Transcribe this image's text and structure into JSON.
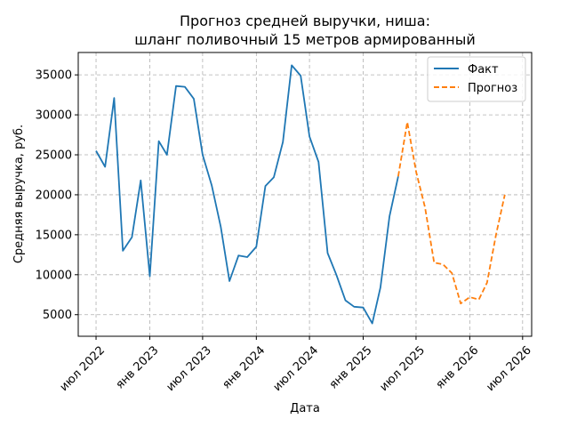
{
  "chart_data": {
    "type": "line",
    "title": [
      "Прогноз средней выручки, ниша:",
      "шланг поливочный 15 метров армированный"
    ],
    "xlabel": "Дата",
    "ylabel": "Средняя выручка, руб.",
    "xlim": [
      "2022-05-01",
      "2026-08-01"
    ],
    "ylim": [
      2300,
      37800
    ],
    "xticks": [
      "2022-07-01",
      "2023-01-01",
      "2023-07-01",
      "2024-01-01",
      "2024-07-01",
      "2025-01-01",
      "2025-07-01",
      "2026-01-01",
      "2026-07-01"
    ],
    "xtick_labels": [
      "июл 2022",
      "янв 2023",
      "июл 2023",
      "янв 2024",
      "июл 2024",
      "янв 2025",
      "июл 2025",
      "янв 2026",
      "июл 2026"
    ],
    "yticks": [
      5000,
      10000,
      15000,
      20000,
      25000,
      30000,
      35000
    ],
    "grid": true,
    "legend_position": "top-right",
    "series": [
      {
        "name": "Факт",
        "color": "#1f77b4",
        "style": "solid",
        "points": [
          [
            "2022-07-01",
            25500
          ],
          [
            "2022-08-01",
            23500
          ],
          [
            "2022-09-01",
            32100
          ],
          [
            "2022-10-01",
            13000
          ],
          [
            "2022-11-01",
            14700
          ],
          [
            "2022-12-01",
            21800
          ],
          [
            "2023-01-01",
            9800
          ],
          [
            "2023-02-01",
            26700
          ],
          [
            "2023-03-01",
            25000
          ],
          [
            "2023-04-01",
            33600
          ],
          [
            "2023-05-01",
            33500
          ],
          [
            "2023-06-01",
            32000
          ],
          [
            "2023-07-01",
            25000
          ],
          [
            "2023-08-01",
            21200
          ],
          [
            "2023-09-01",
            16000
          ],
          [
            "2023-10-01",
            9200
          ],
          [
            "2023-11-01",
            12400
          ],
          [
            "2023-12-01",
            12200
          ],
          [
            "2024-01-01",
            13500
          ],
          [
            "2024-02-01",
            21100
          ],
          [
            "2024-03-01",
            22200
          ],
          [
            "2024-04-01",
            26600
          ],
          [
            "2024-05-01",
            36200
          ],
          [
            "2024-06-01",
            34900
          ],
          [
            "2024-07-01",
            27300
          ],
          [
            "2024-08-01",
            24100
          ],
          [
            "2024-09-01",
            12700
          ],
          [
            "2024-10-01",
            10000
          ],
          [
            "2024-11-01",
            6800
          ],
          [
            "2024-12-01",
            6000
          ],
          [
            "2025-01-01",
            5900
          ],
          [
            "2025-02-01",
            3900
          ],
          [
            "2025-03-01",
            8400
          ],
          [
            "2025-04-01",
            17300
          ],
          [
            "2025-05-01",
            22300
          ]
        ]
      },
      {
        "name": "Прогноз",
        "color": "#ff7f0e",
        "style": "dashed",
        "points": [
          [
            "2025-05-01",
            22300
          ],
          [
            "2025-06-01",
            29100
          ],
          [
            "2025-07-01",
            22900
          ],
          [
            "2025-08-01",
            18400
          ],
          [
            "2025-09-01",
            11500
          ],
          [
            "2025-10-01",
            11300
          ],
          [
            "2025-11-01",
            10200
          ],
          [
            "2025-12-01",
            6400
          ],
          [
            "2026-01-01",
            7200
          ],
          [
            "2026-02-01",
            6900
          ],
          [
            "2026-03-01",
            9000
          ],
          [
            "2026-04-01",
            15000
          ],
          [
            "2026-05-01",
            20000
          ]
        ]
      }
    ]
  }
}
